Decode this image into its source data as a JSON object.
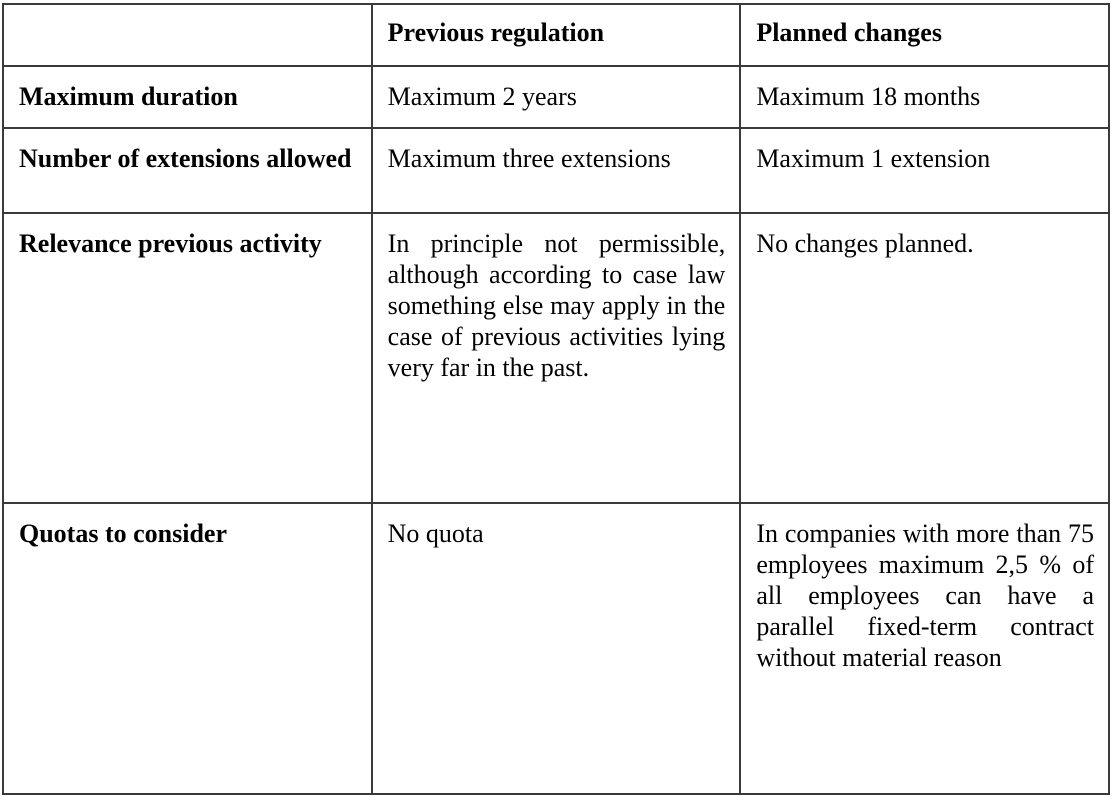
{
  "table": {
    "headers": [
      "",
      "Previous regulation",
      "Planned changes"
    ],
    "rows": [
      [
        "Maximum duration",
        "Maximum 2 years",
        "Maximum 18 months"
      ],
      [
        "Number of extensions allowed",
        "Maximum three extensions",
        "Maximum 1 extension"
      ],
      [
        "Relevance previous activity",
        "In principle not permissible, although according to case law something else may apply in the case of previous activities lying very far in the past.",
        "No changes planned."
      ],
      [
        "Quotas to consider",
        "No quota",
        "In companies with more than 75 employees maximum 2,5 % of all employees can have a parallel fixed-term contract without material reason"
      ]
    ]
  }
}
